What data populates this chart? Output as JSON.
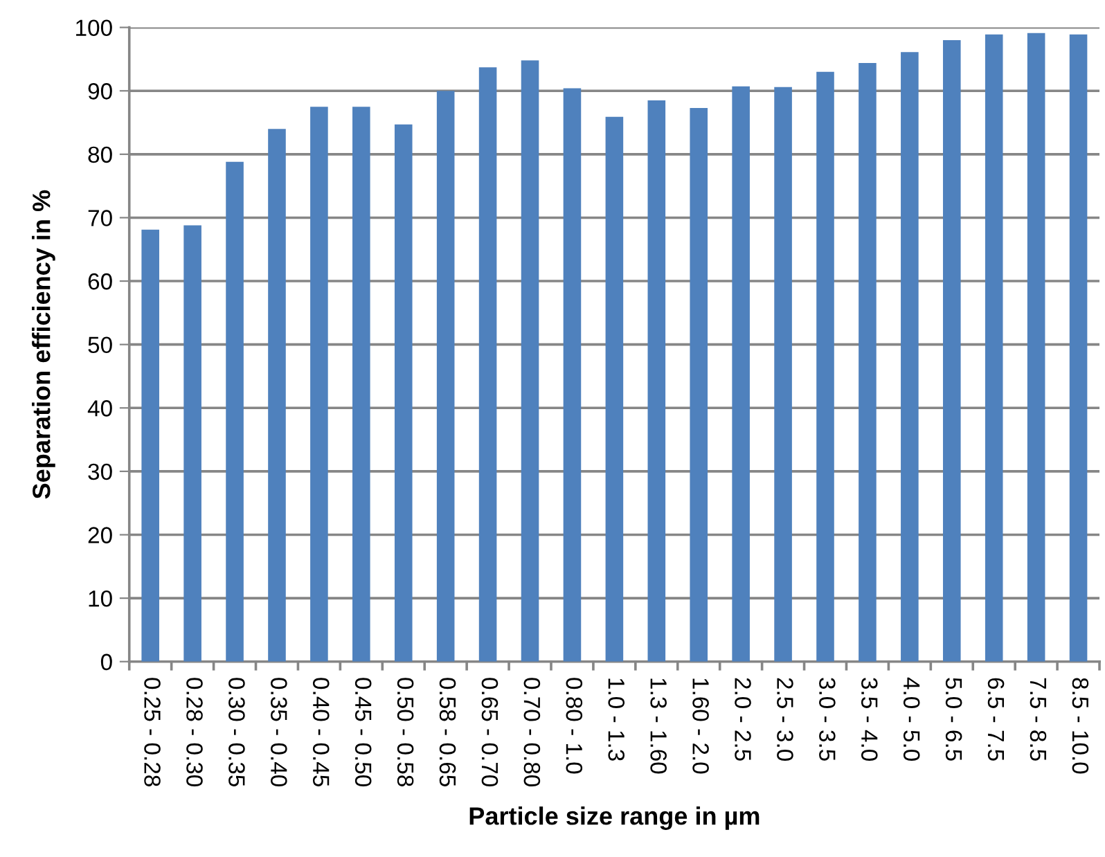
{
  "chart_data": {
    "type": "bar",
    "xlabel": "Particle size range in µm",
    "ylabel": "Separation efficiency in %",
    "categories": [
      "0.25 - 0.28",
      "0.28 - 0.30",
      "0.30 - 0.35",
      "0.35 - 0.40",
      "0.40 - 0.45",
      "0.45 - 0.50",
      "0.50 - 0.58",
      "0.58 - 0.65",
      "0.65 - 0.70",
      "0.70 - 0.80",
      "0.80 - 1.0",
      "1.0 - 1.3",
      "1.3 - 1.60",
      "1.60 - 2.0",
      "2.0 - 2.5",
      "2.5 - 3.0",
      "3.0 - 3.5",
      "3.5 - 4.0",
      "4.0 - 5.0",
      "5.0 - 6.5",
      "6.5 - 7.5",
      "7.5 - 8.5",
      "8.5 - 10.0"
    ],
    "values": [
      68.1,
      68.8,
      78.8,
      84.0,
      87.5,
      87.5,
      84.7,
      90.0,
      93.7,
      94.8,
      90.4,
      85.9,
      88.5,
      87.3,
      90.7,
      90.6,
      93.0,
      94.4,
      96.1,
      98.0,
      98.9,
      99.1,
      98.9
    ],
    "color": "#4f81bd",
    "ylim": [
      0,
      100
    ],
    "yticks": [
      0,
      10,
      20,
      30,
      40,
      50,
      60,
      70,
      80,
      90,
      100
    ],
    "grid": "y",
    "legend": false
  }
}
